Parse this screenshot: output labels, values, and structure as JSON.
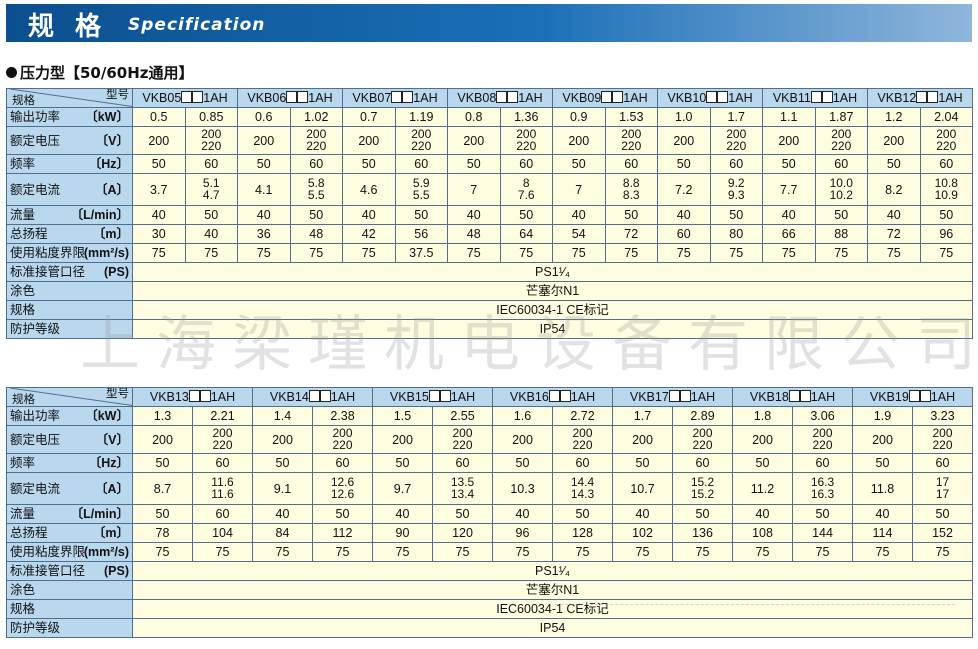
{
  "header": {
    "title_cn": "规 格",
    "title_en": "Specification"
  },
  "subtitle": "压力型【50/60Hz通用】",
  "corner": {
    "left": "规格",
    "right": "型号"
  },
  "row_labels": [
    {
      "name": "输出功率",
      "unit": "〔kW〕"
    },
    {
      "name": "额定电压",
      "unit": "〔V〕"
    },
    {
      "name": "频率",
      "unit": "〔Hz〕"
    },
    {
      "name": "额定电流",
      "unit": "〔A〕"
    },
    {
      "name": "流量",
      "unit": "〔L/min〕"
    },
    {
      "name": "总扬程",
      "unit": "〔m〕"
    },
    {
      "name": "使用粘度界限",
      "unit": "(mm²/s)"
    }
  ],
  "common_rows": [
    {
      "name": "标准接管口径",
      "unit": "(PS)",
      "value": "PS1¹⁄₄"
    },
    {
      "name": "涂色",
      "unit": "",
      "value": "芒塞尔N1"
    },
    {
      "name": "规格",
      "unit": "",
      "value": "IEC60034-1 CE标记"
    },
    {
      "name": "防护等级",
      "unit": "",
      "value": "IP54"
    }
  ],
  "table1": {
    "models": [
      {
        "pre": "VKB05",
        "suf": "1AH"
      },
      {
        "pre": "VKB06",
        "suf": "1AH"
      },
      {
        "pre": "VKB07",
        "suf": "1AH"
      },
      {
        "pre": "VKB08",
        "suf": "1AH"
      },
      {
        "pre": "VKB09",
        "suf": "1AH"
      },
      {
        "pre": "VKB10",
        "suf": "1AH"
      },
      {
        "pre": "VKB11",
        "suf": "1AH"
      },
      {
        "pre": "VKB12",
        "suf": "1AH"
      }
    ],
    "rows": [
      [
        "0.5",
        "0.85",
        "0.6",
        "1.02",
        "0.7",
        "1.19",
        "0.8",
        "1.36",
        "0.9",
        "1.53",
        "1.0",
        "1.7",
        "1.1",
        "1.87",
        "1.2",
        "2.04"
      ],
      [
        "200",
        "200\n220",
        "200",
        "200\n220",
        "200",
        "200\n220",
        "200",
        "200\n220",
        "200",
        "200\n220",
        "200",
        "200\n220",
        "200",
        "200\n220",
        "200",
        "200\n220"
      ],
      [
        "50",
        "60",
        "50",
        "60",
        "50",
        "60",
        "50",
        "60",
        "50",
        "60",
        "50",
        "60",
        "50",
        "60",
        "50",
        "60"
      ],
      [
        "3.7",
        "5.1\n4.7",
        "4.1",
        "5.8\n5.5",
        "4.6",
        "5.9\n5.5",
        "7",
        "8\n7.6",
        "7",
        "8.8\n8.3",
        "7.2",
        "9.2\n9.3",
        "7.7",
        "10.0\n10.2",
        "8.2",
        "10.8\n10.9"
      ],
      [
        "40",
        "50",
        "40",
        "50",
        "40",
        "50",
        "40",
        "50",
        "40",
        "50",
        "40",
        "50",
        "40",
        "50",
        "40",
        "50"
      ],
      [
        "30",
        "40",
        "36",
        "48",
        "42",
        "56",
        "48",
        "64",
        "54",
        "72",
        "60",
        "80",
        "66",
        "88",
        "72",
        "96"
      ],
      [
        "75",
        "75",
        "75",
        "75",
        "75",
        "37.5",
        "75",
        "75",
        "75",
        "75",
        "75",
        "75",
        "75",
        "75",
        "75",
        "75"
      ]
    ]
  },
  "table2": {
    "models": [
      {
        "pre": "VKB13",
        "suf": "1AH"
      },
      {
        "pre": "VKB14",
        "suf": "1AH"
      },
      {
        "pre": "VKB15",
        "suf": "1AH"
      },
      {
        "pre": "VKB16",
        "suf": "1AH"
      },
      {
        "pre": "VKB17",
        "suf": "1AH"
      },
      {
        "pre": "VKB18",
        "suf": "1AH"
      },
      {
        "pre": "VKB19",
        "suf": "1AH"
      }
    ],
    "rows": [
      [
        "1.3",
        "2.21",
        "1.4",
        "2.38",
        "1.5",
        "2.55",
        "1.6",
        "2.72",
        "1.7",
        "2.89",
        "1.8",
        "3.06",
        "1.9",
        "3.23"
      ],
      [
        "200",
        "200\n220",
        "200",
        "200\n220",
        "200",
        "200\n220",
        "200",
        "200\n220",
        "200",
        "200\n220",
        "200",
        "200\n220",
        "200",
        "200\n220"
      ],
      [
        "50",
        "60",
        "50",
        "60",
        "50",
        "60",
        "50",
        "60",
        "50",
        "60",
        "50",
        "60",
        "50",
        "60"
      ],
      [
        "8.7",
        "11.6\n11.6",
        "9.1",
        "12.6\n12.6",
        "9.7",
        "13.5\n13.4",
        "10.3",
        "14.4\n14.3",
        "10.7",
        "15.2\n15.2",
        "11.2",
        "16.3\n16.3",
        "11.8",
        "17\n17"
      ],
      [
        "50",
        "60",
        "40",
        "50",
        "40",
        "50",
        "40",
        "50",
        "40",
        "50",
        "40",
        "50",
        "40",
        "50"
      ],
      [
        "78",
        "104",
        "84",
        "112",
        "90",
        "120",
        "96",
        "128",
        "102",
        "136",
        "108",
        "144",
        "114",
        "152"
      ],
      [
        "75",
        "75",
        "75",
        "75",
        "75",
        "75",
        "75",
        "75",
        "75",
        "75",
        "75",
        "75",
        "75",
        "75"
      ]
    ]
  },
  "watermark": "上海梁瑾机电设备有限公司"
}
